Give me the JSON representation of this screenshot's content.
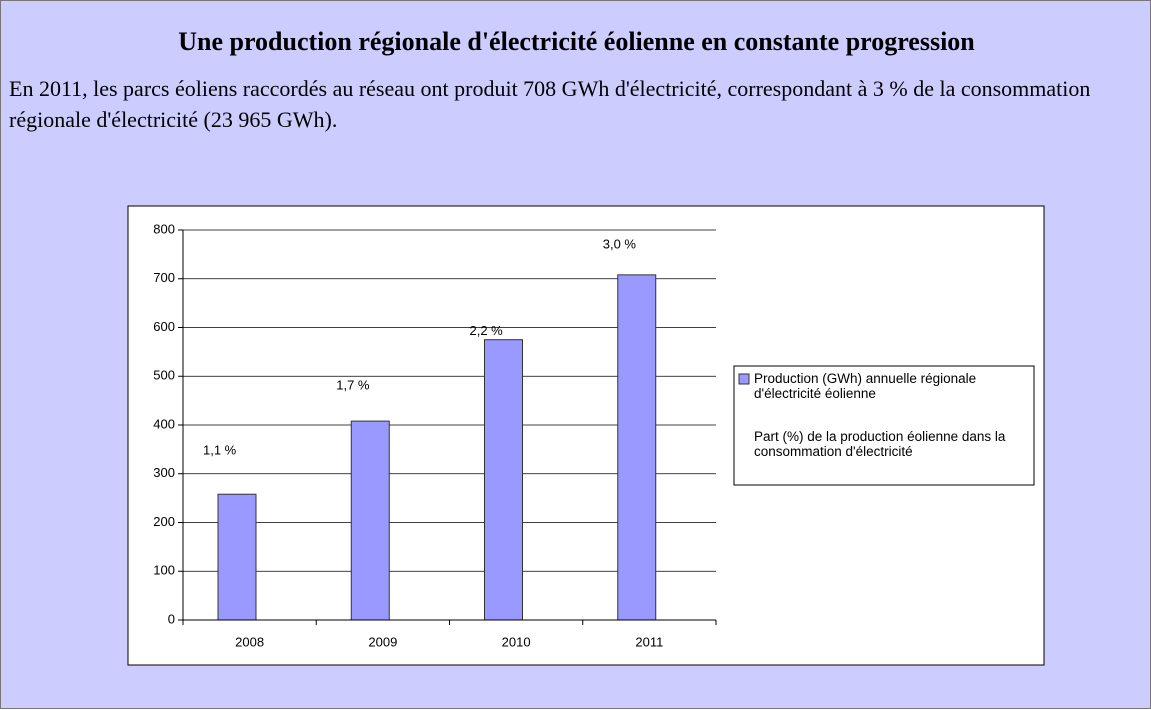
{
  "title": "Une production régionale d'électricité éolienne en constante progression",
  "text": "En 2011, les parcs éoliens raccordés au réseau ont produit 708 GWh d'électricité, correspondant à 3 % de la consommation régionale d'électricité (23 965 GWh).",
  "chart_data": {
    "type": "bar",
    "categories": [
      "2008",
      "2009",
      "2010",
      "2011"
    ],
    "series": [
      {
        "name": "Production (GWh) annuelle régionale d'électricité éolienne",
        "color": "#9999ff",
        "values": [
          258,
          408,
          575,
          708
        ]
      },
      {
        "name": "Part (%) de la production éolienne dans la consommation d'électricité",
        "axis": "y2",
        "values": [
          1.1,
          1.7,
          2.2,
          3.0
        ],
        "value_labels": [
          "1,1 %",
          "1,7 %",
          "2,2 %",
          "3,0 %"
        ]
      }
    ],
    "ylim": [
      0,
      800
    ],
    "yticks": [
      0,
      100,
      200,
      300,
      400,
      500,
      600,
      700,
      800
    ],
    "y2lim": [
      0,
      3.6
    ],
    "grid": true
  }
}
